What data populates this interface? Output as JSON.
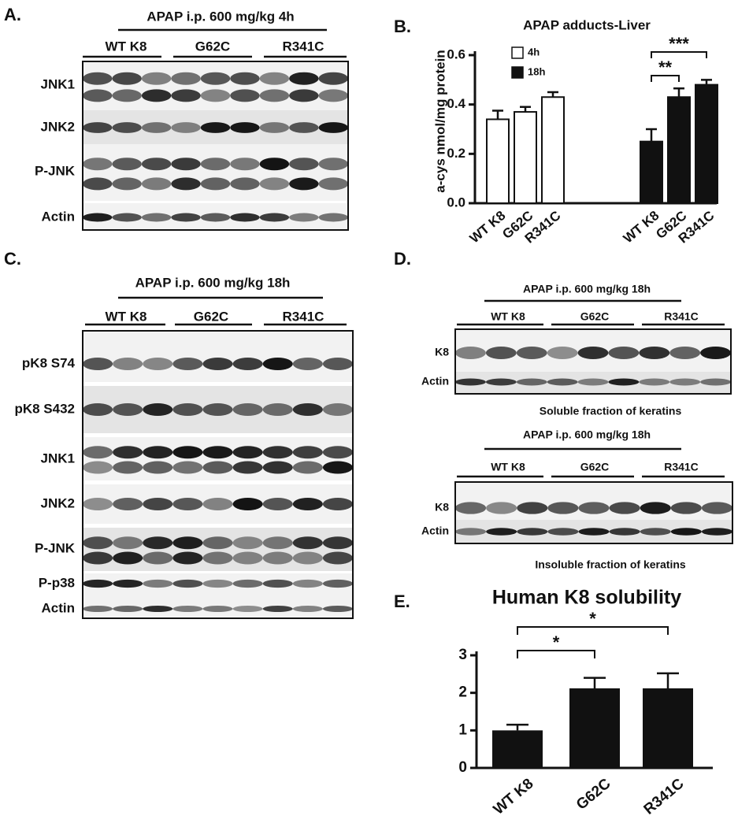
{
  "blots": [
    {
      "panel": "A.",
      "header": "APAP i.p. 600 mg/kg 4h",
      "groups": [
        "WT K8",
        "G62C",
        "R341C"
      ],
      "rows": [
        "JNK1",
        "JNK2",
        "P-JNK",
        "Actin"
      ]
    },
    {
      "panel": "C.",
      "header": "APAP i.p. 600 mg/kg 18h",
      "groups": [
        "WT K8",
        "G62C",
        "R341C"
      ],
      "rows": [
        "pK8 S74",
        "pK8 S432",
        "JNK1",
        "JNK2",
        "P-JNK",
        "P-p38",
        "Actin"
      ]
    },
    {
      "panel": "D.",
      "header": "APAP i.p. 600 mg/kg 18h",
      "groups": [
        "WT K8",
        "G62C",
        "R341C"
      ],
      "rows": [
        "K8",
        "Actin"
      ],
      "caption": "Soluble fraction of keratins"
    },
    {
      "header": "APAP i.p. 600 mg/kg 18h",
      "groups": [
        "WT K8",
        "G62C",
        "R341C"
      ],
      "rows": [
        "K8",
        "Actin"
      ],
      "caption": "Insoluble fraction of keratins"
    }
  ],
  "chart_data": [
    {
      "type": "grouped-bar",
      "panel": "B.",
      "title": "APAP adducts-Liver",
      "y_label": "a-cys nmol/mg protein",
      "categories": [
        "WT K8",
        "G62C",
        "R341C"
      ],
      "series": [
        {
          "name": "4h",
          "color": "#ffffff",
          "values": [
            0.34,
            0.37,
            0.43
          ],
          "errors": [
            0.035,
            0.02,
            0.02
          ]
        },
        {
          "name": "18h",
          "color": "#111111",
          "values": [
            0.25,
            0.43,
            0.48
          ],
          "errors": [
            0.05,
            0.035,
            0.02
          ]
        }
      ],
      "ylim": [
        0,
        0.6
      ],
      "yticks": [
        {
          "value": 0,
          "label": "0.0"
        },
        0.2,
        0.4,
        0.6
      ],
      "annotations": [
        "**",
        "***"
      ]
    },
    {
      "type": "bar",
      "panel": "E.",
      "title": "Human K8 solubility",
      "categories": [
        "WT K8",
        "G62C",
        "R341C"
      ],
      "values": [
        1.0,
        2.12,
        2.12
      ],
      "errors": [
        0.15,
        0.28,
        0.4
      ],
      "color": "#111111",
      "ylim": [
        0,
        3
      ],
      "yticks": [
        0,
        1,
        2,
        3
      ],
      "annotations": [
        "*",
        "*"
      ]
    }
  ]
}
